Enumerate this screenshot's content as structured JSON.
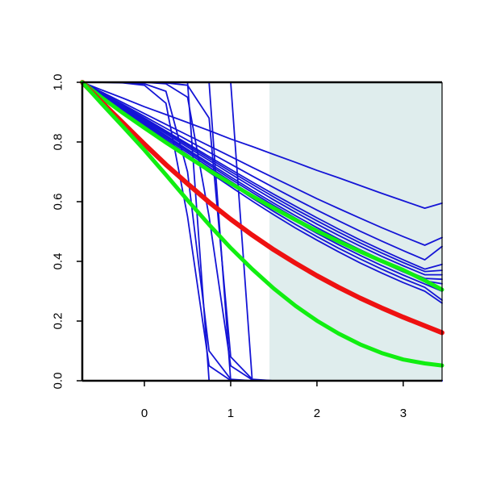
{
  "chart_data": {
    "type": "line",
    "title": "",
    "xlabel": "",
    "ylabel": "",
    "xlim": [
      -0.72,
      3.45
    ],
    "ylim": [
      0,
      1
    ],
    "x_ticks": [
      0,
      1,
      2,
      3
    ],
    "x_tick_labels": [
      "0",
      "1",
      "2",
      "3"
    ],
    "y_ticks": [
      0.0,
      0.2,
      0.4,
      0.6,
      0.8,
      1.0
    ],
    "y_tick_labels": [
      "0.0",
      "0.2",
      "0.4",
      "0.6",
      "0.8",
      "1.0"
    ],
    "grid": false,
    "shaded_region": {
      "x_from": 1.45,
      "x_to": 3.45,
      "color": "#dfeded"
    },
    "colors": {
      "blue": "#1515d6",
      "red": "#ee1111",
      "green": "#11ee11"
    },
    "x": [
      -0.72,
      -0.5,
      -0.25,
      0.0,
      0.25,
      0.5,
      0.75,
      1.0,
      1.25,
      1.5,
      1.75,
      2.0,
      2.25,
      2.5,
      2.75,
      3.0,
      3.25,
      3.45
    ],
    "series": [
      {
        "color": "blue",
        "width": 1.8,
        "values": [
          1,
          1,
          1,
          1,
          0.998,
          0.99,
          0.88,
          0.08,
          0.005,
          0,
          0,
          0,
          0,
          0,
          0,
          0,
          0,
          0
        ]
      },
      {
        "color": "blue",
        "width": 1.8,
        "values": [
          1,
          1,
          1,
          1,
          0.995,
          0.95,
          0.55,
          0.05,
          0.003,
          0,
          0,
          0,
          0,
          0,
          0,
          0,
          0,
          0
        ]
      },
      {
        "color": "blue",
        "width": 1.8,
        "values": [
          1,
          1,
          0.999,
          0.995,
          0.97,
          0.7,
          0.1,
          0.005,
          0,
          0,
          0,
          0,
          0,
          0,
          0,
          0,
          0,
          0
        ]
      },
      {
        "color": "blue",
        "width": 1.8,
        "values": [
          1,
          1,
          0.998,
          0.99,
          0.93,
          0.55,
          0.05,
          0.001,
          0,
          0,
          0,
          0,
          0,
          0,
          0,
          0,
          0,
          0
        ]
      },
      {
        "color": "blue",
        "width": 1.8,
        "values": [
          1,
          1,
          1,
          1,
          1,
          1,
          0.0,
          0,
          0,
          0,
          0,
          0,
          0,
          0,
          0,
          0,
          0,
          0
        ]
      },
      {
        "color": "blue",
        "width": 1.8,
        "values": [
          1,
          1,
          1,
          1,
          1,
          1,
          1,
          1,
          0,
          0,
          0,
          0,
          0,
          0,
          0,
          0,
          0,
          0
        ]
      },
      {
        "color": "blue",
        "width": 1.8,
        "values": [
          1,
          1,
          1,
          1,
          1,
          1,
          1,
          0.0,
          0,
          0,
          0,
          0,
          0,
          0,
          0,
          0,
          0,
          0
        ]
      },
      {
        "color": "blue",
        "width": 1.8,
        "values": [
          1,
          0.975,
          0.947,
          0.918,
          0.892,
          0.865,
          0.838,
          0.81,
          0.785,
          0.758,
          0.732,
          0.705,
          0.68,
          0.654,
          0.628,
          0.603,
          0.578,
          0.595
        ]
      },
      {
        "color": "blue",
        "width": 1.8,
        "values": [
          1,
          0.968,
          0.932,
          0.895,
          0.859,
          0.823,
          0.787,
          0.751,
          0.715,
          0.68,
          0.645,
          0.61,
          0.577,
          0.545,
          0.513,
          0.483,
          0.454,
          0.48
        ]
      },
      {
        "color": "blue",
        "width": 1.8,
        "values": [
          1,
          0.965,
          0.926,
          0.886,
          0.846,
          0.806,
          0.766,
          0.726,
          0.686,
          0.647,
          0.609,
          0.572,
          0.536,
          0.501,
          0.468,
          0.436,
          0.405,
          0.45
        ]
      },
      {
        "color": "blue",
        "width": 1.8,
        "values": [
          1,
          0.963,
          0.922,
          0.88,
          0.837,
          0.794,
          0.751,
          0.708,
          0.666,
          0.625,
          0.585,
          0.546,
          0.508,
          0.472,
          0.438,
          0.405,
          0.374,
          0.39
        ]
      },
      {
        "color": "blue",
        "width": 1.8,
        "values": [
          1,
          0.962,
          0.92,
          0.877,
          0.833,
          0.789,
          0.745,
          0.701,
          0.658,
          0.616,
          0.575,
          0.536,
          0.498,
          0.462,
          0.428,
          0.396,
          0.366,
          0.37
        ]
      },
      {
        "color": "blue",
        "width": 1.8,
        "values": [
          1,
          0.961,
          0.918,
          0.873,
          0.828,
          0.783,
          0.738,
          0.693,
          0.649,
          0.606,
          0.565,
          0.525,
          0.487,
          0.451,
          0.417,
          0.385,
          0.355,
          0.355
        ]
      },
      {
        "color": "blue",
        "width": 1.8,
        "values": [
          1,
          0.96,
          0.915,
          0.869,
          0.822,
          0.775,
          0.729,
          0.683,
          0.638,
          0.595,
          0.553,
          0.513,
          0.475,
          0.439,
          0.405,
          0.373,
          0.343,
          0.34
        ]
      },
      {
        "color": "blue",
        "width": 1.8,
        "values": [
          1,
          0.959,
          0.913,
          0.866,
          0.818,
          0.77,
          0.723,
          0.676,
          0.631,
          0.587,
          0.545,
          0.505,
          0.467,
          0.431,
          0.397,
          0.365,
          0.335,
          0.325
        ]
      },
      {
        "color": "blue",
        "width": 1.8,
        "values": [
          1,
          0.958,
          0.911,
          0.862,
          0.813,
          0.764,
          0.716,
          0.668,
          0.622,
          0.578,
          0.535,
          0.494,
          0.456,
          0.42,
          0.386,
          0.354,
          0.324,
          0.3
        ]
      },
      {
        "color": "blue",
        "width": 1.8,
        "values": [
          1,
          0.957,
          0.908,
          0.858,
          0.807,
          0.757,
          0.707,
          0.659,
          0.612,
          0.567,
          0.524,
          0.483,
          0.444,
          0.408,
          0.374,
          0.342,
          0.313,
          0.27
        ]
      },
      {
        "color": "blue",
        "width": 1.8,
        "values": [
          1,
          0.956,
          0.906,
          0.854,
          0.802,
          0.75,
          0.699,
          0.65,
          0.602,
          0.556,
          0.512,
          0.471,
          0.432,
          0.395,
          0.361,
          0.329,
          0.3,
          0.26
        ]
      },
      {
        "color": "green",
        "width": 5,
        "values": [
          1,
          0.95,
          0.897,
          0.847,
          0.798,
          0.751,
          0.705,
          0.661,
          0.619,
          0.578,
          0.539,
          0.502,
          0.467,
          0.433,
          0.401,
          0.371,
          0.336,
          0.305
        ]
      },
      {
        "color": "red",
        "width": 6,
        "values": [
          1,
          0.935,
          0.864,
          0.793,
          0.724,
          0.66,
          0.598,
          0.541,
          0.488,
          0.439,
          0.394,
          0.352,
          0.313,
          0.277,
          0.244,
          0.213,
          0.184,
          0.161
        ]
      },
      {
        "color": "green",
        "width": 5,
        "values": [
          1,
          0.93,
          0.852,
          0.773,
          0.69,
          0.605,
          0.523,
          0.445,
          0.374,
          0.309,
          0.251,
          0.201,
          0.158,
          0.122,
          0.093,
          0.071,
          0.058,
          0.051
        ]
      }
    ]
  }
}
